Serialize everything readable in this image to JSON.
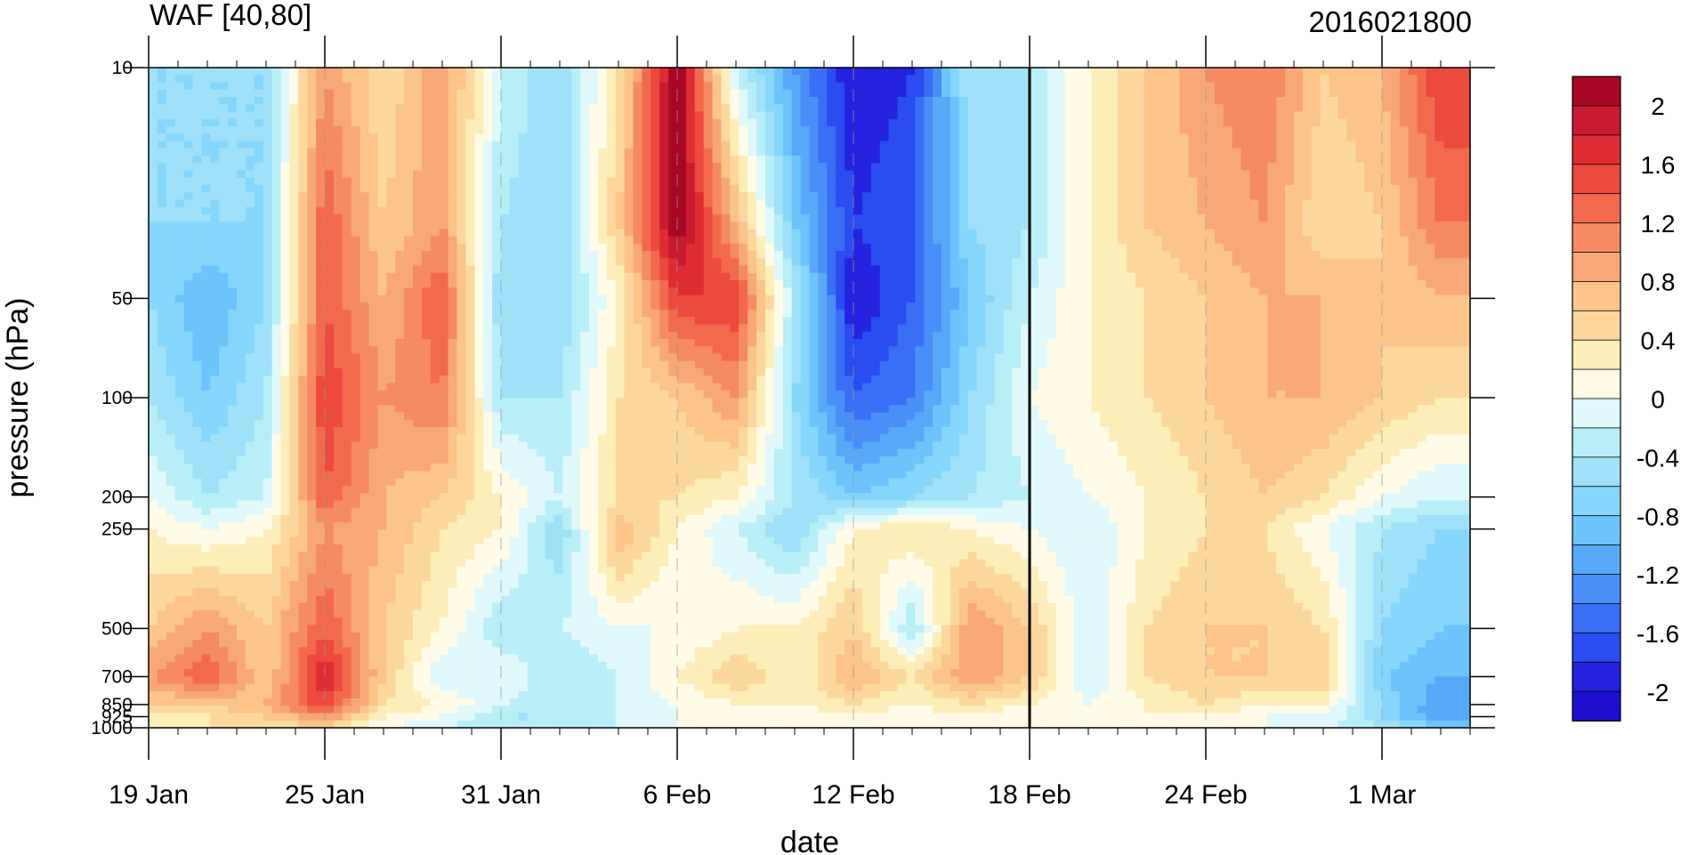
{
  "chart_data": {
    "type": "heatmap",
    "title_left": "WAF [40,80]",
    "title_right": "2016021800",
    "xlabel": "date",
    "ylabel": "pressure (hPa)",
    "x_ticks": [
      "19 Jan",
      "25 Jan",
      "31 Jan",
      "6 Feb",
      "12 Feb",
      "18 Feb",
      "24 Feb",
      "1 Mar"
    ],
    "y_ticks": [
      "10",
      "50",
      "100",
      "200",
      "250",
      "500",
      "700",
      "850",
      "925",
      "1000"
    ],
    "x_range": [
      "19 Jan",
      "4 Mar"
    ],
    "y_range": [
      1000,
      10
    ],
    "y_scale": "log",
    "marked_date": "18 Feb",
    "colorbar": {
      "labels": [
        "2",
        "1.6",
        "1.2",
        "0.8",
        "0.4",
        "0",
        "-0.4",
        "-0.8",
        "-1.2",
        "-1.6",
        "-2"
      ],
      "levels": [
        -2.2,
        -2.0,
        -1.8,
        -1.6,
        -1.4,
        -1.2,
        -1.0,
        -0.8,
        -0.6,
        -0.4,
        -0.2,
        0.0,
        0.2,
        0.4,
        0.6,
        0.8,
        1.0,
        1.2,
        1.4,
        1.6,
        1.8,
        2.0
      ],
      "colors": [
        "#1e0fd0",
        "#2323e0",
        "#2a4cf0",
        "#3a6ef5",
        "#4a8ef8",
        "#58a8fa",
        "#6dc4fb",
        "#86d6fb",
        "#a0e0f8",
        "#b7eef8",
        "#dff8fb",
        "#fffbe6",
        "#fdedb8",
        "#fcd89e",
        "#fbc48a",
        "#f8a878",
        "#f68a62",
        "#f26a4e",
        "#ec4a3e",
        "#e02c34",
        "#c81a30",
        "#a80824"
      ]
    },
    "dates": [
      "19 Jan",
      "21 Jan",
      "23 Jan",
      "25 Jan",
      "27 Jan",
      "29 Jan",
      "31 Jan",
      "2 Feb",
      "4 Feb",
      "6 Feb",
      "8 Feb",
      "10 Feb",
      "12 Feb",
      "14 Feb",
      "16 Feb",
      "18 Feb",
      "20 Feb",
      "22 Feb",
      "24 Feb",
      "26 Feb",
      "28 Feb",
      "1 Mar",
      "3 Mar"
    ],
    "levels_hPa": [
      10,
      30,
      50,
      100,
      200,
      250,
      500,
      700,
      850,
      925,
      1000
    ],
    "values": [
      [
        -0.6,
        -0.6,
        -0.6,
        1.0,
        0.4,
        1.0,
        -0.2,
        -0.6,
        0.4,
        2.2,
        -0.2,
        -1.2,
        -2.0,
        -1.8,
        -0.4,
        -0.4,
        0.2,
        0.6,
        1.0,
        1.2,
        0.6,
        0.8,
        1.6
      ],
      [
        -0.6,
        -0.6,
        -0.6,
        1.4,
        0.6,
        1.0,
        -0.4,
        -0.6,
        0.6,
        2.2,
        0.8,
        -0.8,
        -1.8,
        -1.6,
        -0.6,
        -0.4,
        0.2,
        0.6,
        0.8,
        1.0,
        0.4,
        0.6,
        1.2
      ],
      [
        -0.6,
        -1.0,
        -0.6,
        1.4,
        0.8,
        1.4,
        -0.6,
        -0.6,
        0.2,
        1.6,
        1.6,
        -0.4,
        -2.0,
        -1.6,
        -0.8,
        -0.2,
        0.2,
        0.4,
        0.6,
        0.8,
        0.8,
        0.6,
        0.8
      ],
      [
        -0.4,
        -0.8,
        -0.4,
        1.6,
        1.0,
        1.2,
        -0.4,
        -0.4,
        0.4,
        0.6,
        1.0,
        -0.6,
        -1.6,
        -1.4,
        -0.6,
        0.0,
        0.2,
        0.4,
        0.6,
        0.8,
        0.8,
        0.6,
        0.4
      ],
      [
        0.0,
        -0.4,
        -0.2,
        1.4,
        0.8,
        0.6,
        0.2,
        -0.2,
        0.4,
        0.4,
        0.2,
        -0.4,
        -0.8,
        -0.6,
        -0.4,
        -0.2,
        0.0,
        0.2,
        0.4,
        0.6,
        0.4,
        0.0,
        -0.2
      ],
      [
        0.2,
        0.0,
        0.2,
        1.0,
        0.8,
        0.4,
        0.2,
        -0.6,
        0.8,
        0.2,
        -0.2,
        -0.6,
        0.2,
        0.4,
        0.2,
        0.0,
        -0.2,
        0.2,
        0.4,
        0.4,
        0.0,
        -0.4,
        -0.6
      ],
      [
        0.6,
        1.0,
        0.6,
        1.4,
        0.6,
        0.2,
        -0.4,
        -0.2,
        0.0,
        0.0,
        0.2,
        0.2,
        0.6,
        -0.4,
        1.0,
        0.6,
        -0.2,
        0.4,
        0.6,
        0.6,
        0.4,
        -0.6,
        -0.8
      ],
      [
        1.0,
        1.4,
        0.6,
        1.8,
        0.6,
        -0.2,
        0.0,
        -0.4,
        -0.2,
        0.2,
        0.6,
        0.2,
        0.8,
        0.4,
        1.0,
        0.6,
        -0.2,
        0.4,
        0.6,
        0.6,
        0.6,
        -0.8,
        -1.0
      ],
      [
        0.6,
        0.6,
        0.8,
        1.6,
        0.4,
        0.2,
        -0.2,
        -0.4,
        -0.2,
        0.0,
        0.2,
        0.2,
        0.4,
        0.2,
        0.4,
        0.2,
        0.0,
        0.2,
        0.4,
        0.2,
        0.2,
        -0.6,
        -1.2
      ],
      [
        0.4,
        0.4,
        0.6,
        1.0,
        0.2,
        0.0,
        -0.4,
        -0.4,
        -0.2,
        0.0,
        0.0,
        0.0,
        0.2,
        0.0,
        0.2,
        0.0,
        0.0,
        0.2,
        0.2,
        0.0,
        0.0,
        -0.6,
        -1.2
      ],
      [
        0.2,
        0.4,
        0.4,
        0.6,
        0.0,
        -0.2,
        -0.4,
        -0.4,
        -0.2,
        0.0,
        0.0,
        0.0,
        0.0,
        0.0,
        0.0,
        0.0,
        0.0,
        0.0,
        0.0,
        0.0,
        -0.2,
        -0.4,
        -0.8
      ]
    ]
  }
}
